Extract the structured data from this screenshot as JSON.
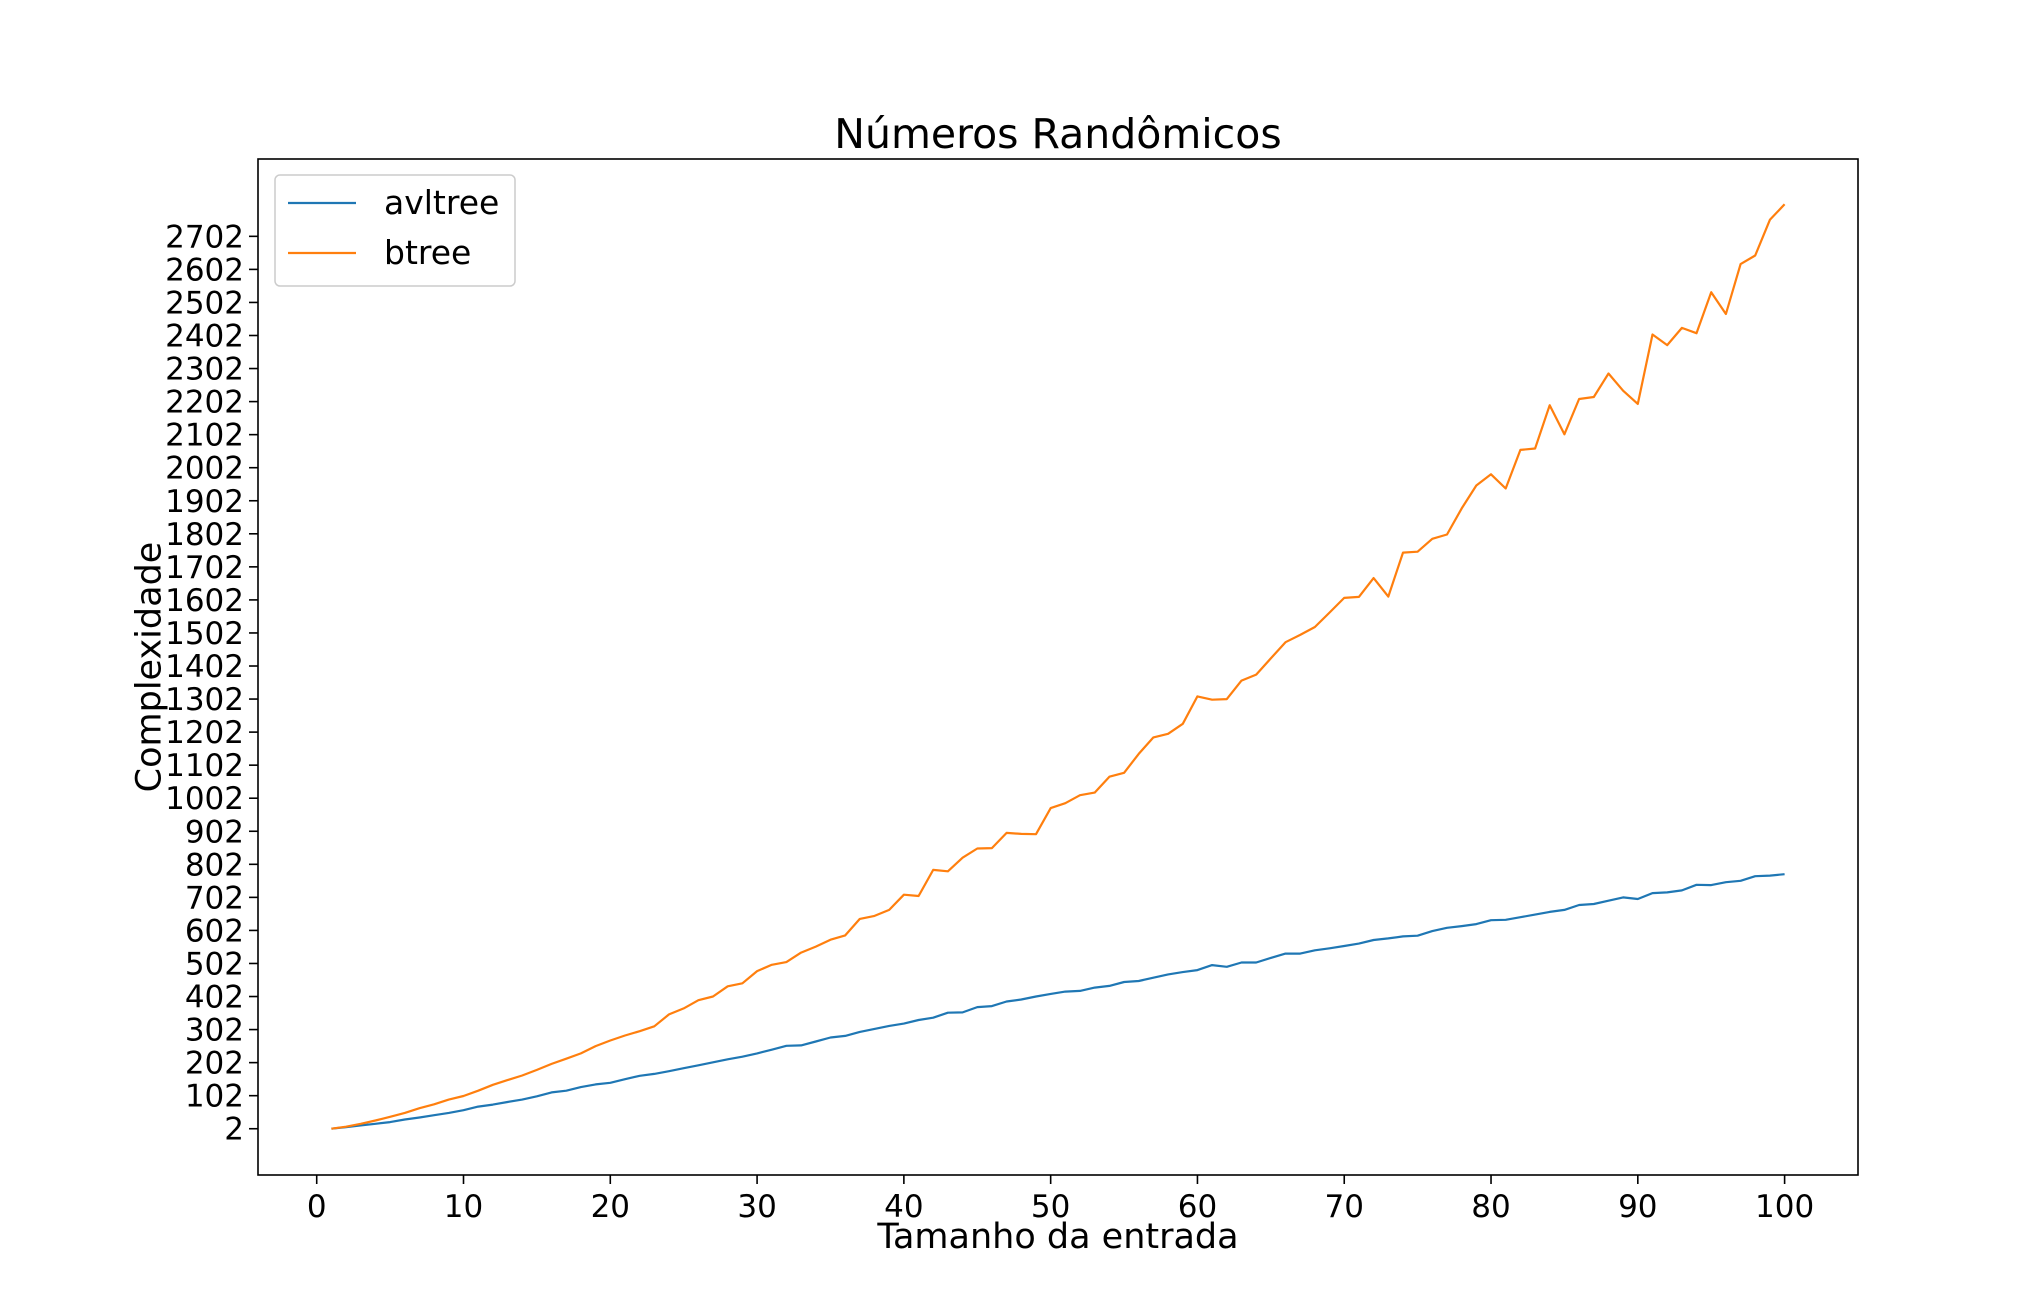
{
  "chart_data": {
    "type": "line",
    "title": "Números Randômicos",
    "xlabel": "Tamanho da entrada",
    "ylabel": "Complexidade",
    "xlim": [
      -4,
      105
    ],
    "ylim": [
      -138,
      2936
    ],
    "x_ticks": [
      0,
      10,
      20,
      30,
      40,
      50,
      60,
      70,
      80,
      90,
      100
    ],
    "y_ticks": [
      2,
      102,
      202,
      302,
      402,
      502,
      602,
      702,
      802,
      902,
      1002,
      1102,
      1202,
      1302,
      1402,
      1502,
      1602,
      1702,
      1802,
      1902,
      2002,
      2102,
      2202,
      2302,
      2402,
      2502,
      2602,
      2702
    ],
    "grid": false,
    "legend_position": "upper-left",
    "x": [
      1,
      2,
      3,
      4,
      5,
      6,
      7,
      8,
      9,
      10,
      11,
      12,
      13,
      14,
      15,
      16,
      17,
      18,
      19,
      20,
      21,
      22,
      23,
      24,
      25,
      26,
      27,
      28,
      29,
      30,
      31,
      32,
      33,
      34,
      35,
      36,
      37,
      38,
      39,
      40,
      41,
      42,
      43,
      44,
      45,
      46,
      47,
      48,
      49,
      50,
      51,
      52,
      53,
      54,
      55,
      56,
      57,
      58,
      59,
      60,
      61,
      62,
      63,
      64,
      65,
      66,
      67,
      68,
      69,
      70,
      71,
      72,
      73,
      74,
      75,
      76,
      77,
      78,
      79,
      80,
      81,
      82,
      83,
      84,
      85,
      86,
      87,
      88,
      89,
      90,
      91,
      92,
      93,
      94,
      95,
      96,
      97,
      98,
      99,
      100
    ],
    "series": [
      {
        "name": "avltree",
        "color": "#1f77b4",
        "values": [
          2,
          7,
          12,
          17,
          22,
          30,
          36,
          43,
          50,
          58,
          69,
          75,
          83,
          90,
          100,
          112,
          117,
          128,
          136,
          141,
          152,
          162,
          168,
          176,
          185,
          194,
          203,
          212,
          220,
          230,
          241,
          253,
          254,
          266,
          278,
          283,
          295,
          304,
          313,
          320,
          331,
          338,
          353,
          354,
          370,
          373,
          387,
          393,
          402,
          410,
          417,
          419,
          429,
          434,
          446,
          449,
          459,
          469,
          476,
          482,
          497,
          492,
          505,
          505,
          519,
          532,
          532,
          542,
          548,
          555,
          562,
          573,
          578,
          584,
          586,
          600,
          610,
          615,
          621,
          633,
          634,
          642,
          650,
          658,
          664,
          679,
          682,
          692,
          702,
          697,
          715,
          717,
          723,
          740,
          739,
          748,
          752,
          766,
          768,
          772
        ]
      },
      {
        "name": "btree",
        "color": "#ff7f0e",
        "values": [
          2,
          8,
          17,
          27,
          38,
          50,
          64,
          76,
          90,
          101,
          117,
          135,
          149,
          163,
          180,
          198,
          214,
          230,
          252,
          269,
          284,
          297,
          312,
          348,
          366,
          391,
          402,
          433,
          442,
          479,
          498,
          506,
          535,
          553,
          574,
          587,
          637,
          646,
          664,
          710,
          706,
          785,
          781,
          822,
          850,
          851,
          897,
          894,
          893,
          972,
          987,
          1011,
          1019,
          1067,
          1079,
          1136,
          1186,
          1197,
          1227,
          1310,
          1300,
          1302,
          1358,
          1376,
          1425,
          1474,
          1496,
          1520,
          1564,
          1608,
          1611,
          1668,
          1612,
          1745,
          1748,
          1787,
          1800,
          1879,
          1948,
          1982,
          1939,
          2056,
          2060,
          2191,
          2103,
          2210,
          2216,
          2287,
          2235,
          2195,
          2405,
          2373,
          2425,
          2409,
          2533,
          2467,
          2618,
          2644,
          2752,
          2799
        ]
      }
    ]
  }
}
